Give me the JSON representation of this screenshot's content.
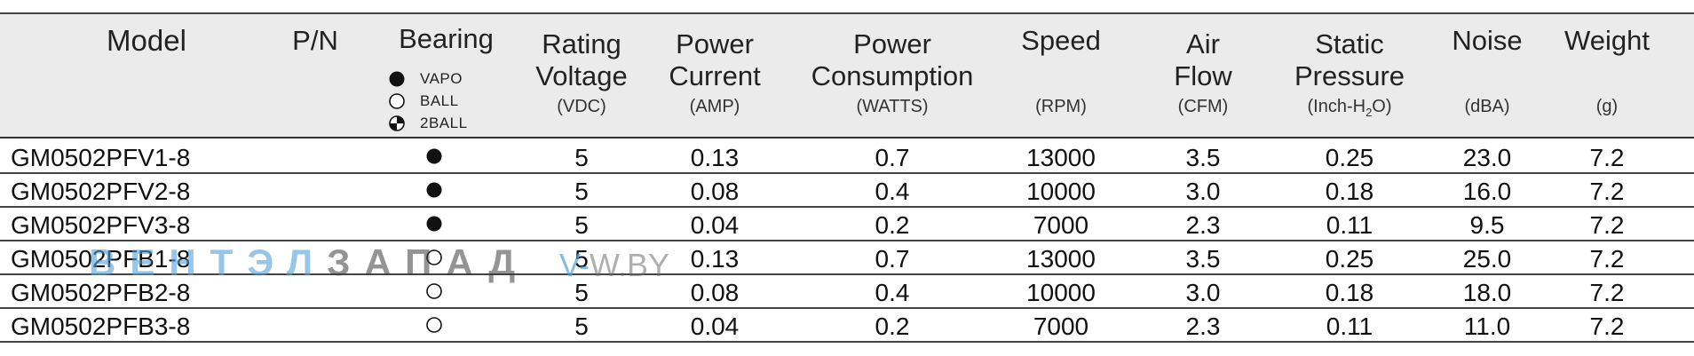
{
  "headers": [
    {
      "key": "model",
      "label": "Model",
      "unit": ""
    },
    {
      "key": "pn",
      "label": "P/N",
      "unit": ""
    },
    {
      "key": "bearing",
      "label": "Bearing",
      "unit": ""
    },
    {
      "key": "voltage",
      "label": "Rating\nVoltage",
      "unit": "(VDC)"
    },
    {
      "key": "current",
      "label": "Power\nCurrent",
      "unit": "(AMP)"
    },
    {
      "key": "consumption",
      "label": "Power\nConsumption",
      "unit": "(WATTS)"
    },
    {
      "key": "speed",
      "label": "Speed",
      "unit": "(RPM)"
    },
    {
      "key": "airflow",
      "label": "Air\nFlow",
      "unit": "(CFM)"
    },
    {
      "key": "pressure",
      "label": "Static\nPressure",
      "unit_prefix": "(Inch-H",
      "unit_sub": "2",
      "unit_suffix": "O)"
    },
    {
      "key": "noise",
      "label": "Noise",
      "unit": "(dBA)"
    },
    {
      "key": "weight",
      "label": "Weight",
      "unit": "(g)"
    }
  ],
  "bearing_legend": [
    {
      "type": "vapo",
      "label": "VAPO"
    },
    {
      "type": "ball",
      "label": "BALL"
    },
    {
      "type": "2ball",
      "label": "2BALL"
    }
  ],
  "rows": [
    {
      "model": "GM0502PFV1-8",
      "pn": "",
      "bearing": "vapo",
      "voltage": "5",
      "current": "0.13",
      "consumption": "0.7",
      "speed": "13000",
      "airflow": "3.5",
      "pressure": "0.25",
      "noise": "23.0",
      "weight": "7.2"
    },
    {
      "model": "GM0502PFV2-8",
      "pn": "",
      "bearing": "vapo",
      "voltage": "5",
      "current": "0.08",
      "consumption": "0.4",
      "speed": "10000",
      "airflow": "3.0",
      "pressure": "0.18",
      "noise": "16.0",
      "weight": "7.2"
    },
    {
      "model": "GM0502PFV3-8",
      "pn": "",
      "bearing": "vapo",
      "voltage": "5",
      "current": "0.04",
      "consumption": "0.2",
      "speed": "7000",
      "airflow": "2.3",
      "pressure": "0.11",
      "noise": "9.5",
      "weight": "7.2"
    },
    {
      "model": "GM0502PFB1-8",
      "pn": "",
      "bearing": "ball",
      "voltage": "5",
      "current": "0.13",
      "consumption": "0.7",
      "speed": "13000",
      "airflow": "3.5",
      "pressure": "0.25",
      "noise": "25.0",
      "weight": "7.2"
    },
    {
      "model": "GM0502PFB2-8",
      "pn": "",
      "bearing": "ball",
      "voltage": "5",
      "current": "0.08",
      "consumption": "0.4",
      "speed": "10000",
      "airflow": "3.0",
      "pressure": "0.18",
      "noise": "18.0",
      "weight": "7.2"
    },
    {
      "model": "GM0502PFB3-8",
      "pn": "",
      "bearing": "ball",
      "voltage": "5",
      "current": "0.04",
      "consumption": "0.2",
      "speed": "7000",
      "airflow": "2.3",
      "pressure": "0.11",
      "noise": "11.0",
      "weight": "7.2"
    }
  ],
  "watermark": {
    "part1": "ВЕНТЭЛ",
    "part2": "ЗАПАД",
    "site_v": "V-",
    "site_rest": "W.BY"
  },
  "colors": {
    "header_bg": "#ebebeb",
    "rule": "#444444",
    "watermark_blue": "#50a0dc"
  }
}
